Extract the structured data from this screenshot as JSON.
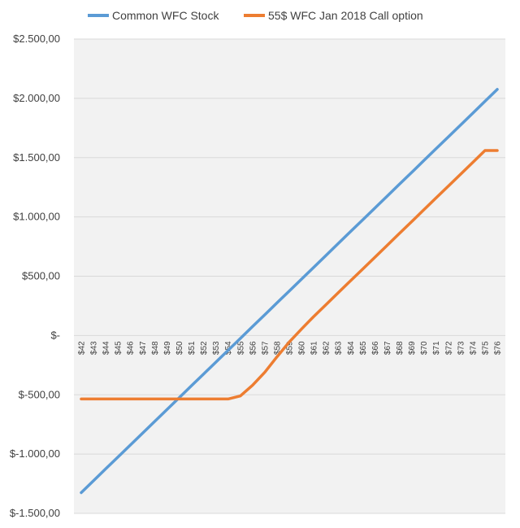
{
  "chart_data": {
    "type": "line",
    "title": "",
    "xlabel": "",
    "ylabel": "",
    "categories": [
      "$42",
      "$43",
      "$44",
      "$45",
      "$46",
      "$47",
      "$48",
      "$49",
      "$50",
      "$51",
      "$52",
      "$53",
      "$54",
      "$55",
      "$56",
      "$57",
      "$58",
      "$59",
      "$60",
      "$61",
      "$62",
      "$63",
      "$64",
      "$65",
      "$66",
      "$67",
      "$68",
      "$69",
      "$70",
      "$71",
      "$72",
      "$73",
      "$74",
      "$75",
      "$76"
    ],
    "ylim": [
      -1500,
      2500
    ],
    "y_ticks": [
      2500,
      2000,
      1500,
      1000,
      500,
      0,
      -500,
      -1000,
      -1500
    ],
    "y_tick_labels": [
      "$2.500,00",
      "$2.000,00",
      "$1.500,00",
      "$1.000,00",
      "$500,00",
      "$-",
      "$-500,00",
      "$-1.000,00",
      "$-1.500,00"
    ],
    "legend_position": "top",
    "grid": true,
    "series": [
      {
        "name": "Common WFC Stock",
        "color": "#5B9BD5",
        "values": [
          -1325,
          -1225,
          -1125,
          -1025,
          -925,
          -825,
          -725,
          -625,
          -525,
          -425,
          -325,
          -225,
          -125,
          -25,
          75,
          175,
          275,
          375,
          475,
          575,
          675,
          775,
          875,
          975,
          1075,
          1175,
          1275,
          1375,
          1475,
          1575,
          1675,
          1775,
          1875,
          1975,
          2075
        ]
      },
      {
        "name": "55$ WFC Jan 2018 Call option",
        "color": "#ED7D31",
        "values": [
          -535,
          -535,
          -535,
          -535,
          -535,
          -535,
          -535,
          -535,
          -535,
          -535,
          -535,
          -535,
          -535,
          -510,
          -420,
          -310,
          -180,
          -55,
          55,
          160,
          260,
          360,
          460,
          560,
          660,
          760,
          860,
          960,
          1060,
          1160,
          1260,
          1360,
          1460,
          1560,
          1560
        ]
      }
    ]
  }
}
